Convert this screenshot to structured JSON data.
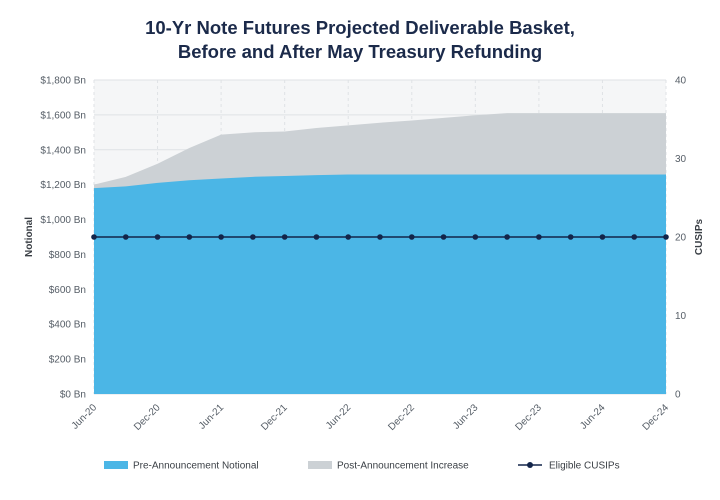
{
  "title_line1": "10-Yr Note Futures Projected Deliverable Basket,",
  "title_line2": "Before and After May Treasury Refunding",
  "chart_data": {
    "type": "area",
    "title": "10-Yr Note Futures Projected Deliverable Basket, Before and After May Treasury Refunding",
    "ylabel": "Notional",
    "y2label": "CUSIPs",
    "ylim": [
      0,
      1800
    ],
    "y2lim": [
      0,
      40
    ],
    "yticks": [
      "$0 Bn",
      "$200 Bn",
      "$400 Bn",
      "$600 Bn",
      "$800 Bn",
      "$1,000 Bn",
      "$1,200 Bn",
      "$1,400 Bn",
      "$1,600 Bn",
      "$1,800 Bn"
    ],
    "y2ticks": [
      "0",
      "10",
      "20",
      "30",
      "40"
    ],
    "xticks": [
      "Jun-20",
      "Dec-20",
      "Jun-21",
      "Dec-21",
      "Jun-22",
      "Dec-22",
      "Jun-23",
      "Dec-23",
      "Jun-24",
      "Dec-24"
    ],
    "grid": true,
    "legend_position": "bottom",
    "series": [
      {
        "name": "Pre-Announcement Notional",
        "color": "#4bb6e6",
        "type": "area",
        "axis": "left",
        "points": [
          [
            0,
            1180
          ],
          [
            3,
            1190
          ],
          [
            6,
            1210
          ],
          [
            9,
            1225
          ],
          [
            12,
            1235
          ],
          [
            15,
            1245
          ],
          [
            18,
            1250
          ],
          [
            21,
            1255
          ],
          [
            24,
            1258
          ],
          [
            27,
            1258
          ],
          [
            30,
            1258
          ],
          [
            33,
            1258
          ],
          [
            36,
            1258
          ],
          [
            39,
            1258
          ],
          [
            42,
            1258
          ],
          [
            45,
            1258
          ],
          [
            48,
            1258
          ],
          [
            51,
            1258
          ],
          [
            54,
            1258
          ]
        ]
      },
      {
        "name": "Post-Announcement Increase",
        "color": "#ccd1d5",
        "type": "area",
        "axis": "left",
        "points": [
          [
            0,
            1200
          ],
          [
            3,
            1245
          ],
          [
            6,
            1320
          ],
          [
            9,
            1410
          ],
          [
            12,
            1487
          ],
          [
            15,
            1500
          ],
          [
            18,
            1505
          ],
          [
            21,
            1525
          ],
          [
            24,
            1540
          ],
          [
            27,
            1555
          ],
          [
            30,
            1568
          ],
          [
            33,
            1583
          ],
          [
            36,
            1598
          ],
          [
            39,
            1610
          ],
          [
            42,
            1610
          ],
          [
            45,
            1610
          ],
          [
            48,
            1610
          ],
          [
            51,
            1610
          ],
          [
            54,
            1610
          ]
        ]
      },
      {
        "name": "Eligible CUSIPs",
        "color": "#13254a",
        "type": "line",
        "axis": "right",
        "points": [
          [
            0,
            20
          ],
          [
            3,
            20
          ],
          [
            6,
            20
          ],
          [
            9,
            20
          ],
          [
            12,
            20
          ],
          [
            15,
            20
          ],
          [
            18,
            20
          ],
          [
            21,
            20
          ],
          [
            24,
            20
          ],
          [
            27,
            20
          ],
          [
            30,
            20
          ],
          [
            33,
            20
          ],
          [
            36,
            20
          ],
          [
            39,
            20
          ],
          [
            42,
            20
          ],
          [
            45,
            20
          ],
          [
            48,
            20
          ],
          [
            51,
            20
          ],
          [
            54,
            20
          ]
        ]
      }
    ]
  }
}
